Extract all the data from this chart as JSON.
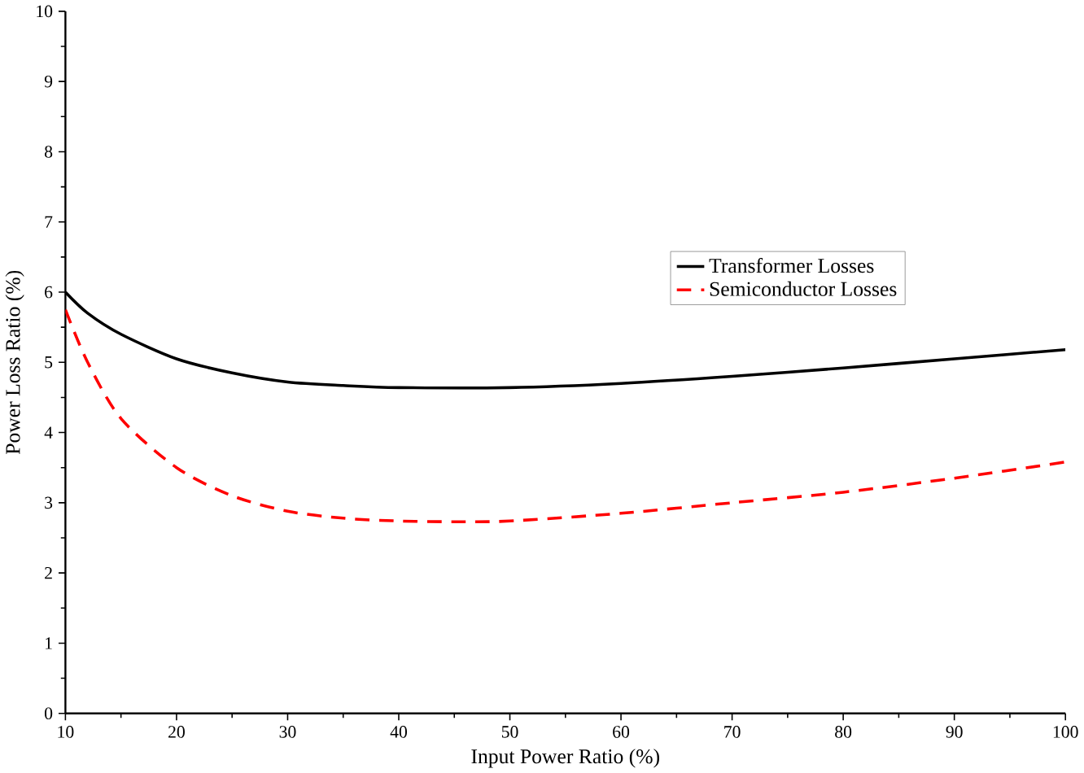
{
  "chart_data": {
    "type": "line",
    "xlabel": "Input Power Ratio (%)",
    "ylabel": "Power Loss Ratio (%)",
    "xlim": [
      10,
      100
    ],
    "ylim": [
      0,
      10
    ],
    "xticks": [
      10,
      20,
      30,
      40,
      50,
      60,
      70,
      80,
      90,
      100
    ],
    "yticks": [
      0,
      1,
      2,
      3,
      4,
      5,
      6,
      7,
      8,
      9,
      10
    ],
    "grid": false,
    "legend": "right",
    "marker": "none",
    "series": [
      {
        "name": "Transformer Losses",
        "color": "#000000",
        "line_style": "solid",
        "x": [
          10,
          12,
          15,
          20,
          25,
          30,
          35,
          40,
          50,
          60,
          70,
          80,
          90,
          100
        ],
        "values": [
          6.0,
          5.7,
          5.4,
          5.05,
          4.85,
          4.72,
          4.67,
          4.64,
          4.64,
          4.7,
          4.8,
          4.92,
          5.05,
          5.18
        ]
      },
      {
        "name": "Semiconductor Losses",
        "color": "#ff0000",
        "line_style": "dashed",
        "x": [
          10,
          12,
          15,
          20,
          25,
          30,
          35,
          40,
          45,
          50,
          60,
          70,
          80,
          90,
          100
        ],
        "values": [
          5.75,
          5.0,
          4.2,
          3.5,
          3.1,
          2.88,
          2.78,
          2.74,
          2.73,
          2.74,
          2.85,
          3.0,
          3.15,
          3.35,
          3.58
        ]
      }
    ]
  }
}
